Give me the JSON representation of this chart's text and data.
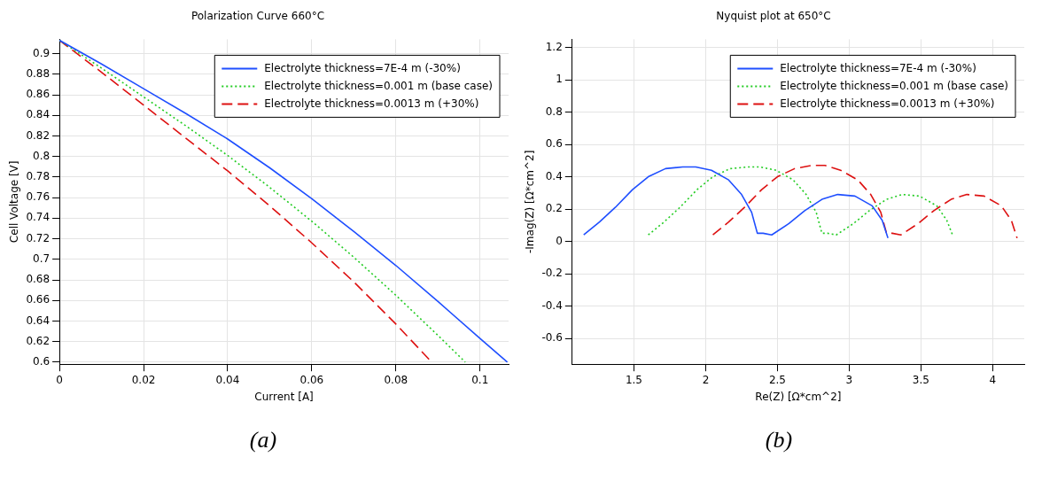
{
  "chart_data": [
    {
      "type": "line",
      "title": "Polarization Curve 660°C",
      "xlabel": "Current [A]",
      "ylabel": "Cell Voltage [V]",
      "xlim": [
        0,
        0.1068
      ],
      "ylim": [
        0.598,
        0.914
      ],
      "xticks": [
        0,
        0.02,
        0.04,
        0.06,
        0.08,
        0.1
      ],
      "yticks": [
        0.6,
        0.62,
        0.64,
        0.66,
        0.68,
        0.7,
        0.72,
        0.74,
        0.76,
        0.78,
        0.8,
        0.82,
        0.84,
        0.86,
        0.88,
        0.9
      ],
      "grid": true,
      "legend": "top right",
      "marker": "none",
      "annotations": [
        "(a)"
      ],
      "series": [
        {
          "name": "Electrolyte thickness=7E-4 m (-30%)",
          "color": "#1f4fff",
          "line_style": "solid",
          "x": [
            0,
            0.01,
            0.02,
            0.03,
            0.04,
            0.05,
            0.06,
            0.07,
            0.08,
            0.09,
            0.1,
            0.1065
          ],
          "values": [
            0.913,
            0.89,
            0.866,
            0.842,
            0.817,
            0.789,
            0.759,
            0.727,
            0.694,
            0.659,
            0.623,
            0.6
          ]
        },
        {
          "name": "Electrolyte thickness=0.001 m (base case)",
          "color": "#22cc22",
          "line_style": "dotted",
          "x": [
            0,
            0.01,
            0.02,
            0.03,
            0.04,
            0.05,
            0.06,
            0.07,
            0.08,
            0.09,
            0.0965
          ],
          "values": [
            0.913,
            0.886,
            0.858,
            0.83,
            0.801,
            0.77,
            0.737,
            0.702,
            0.665,
            0.626,
            0.6
          ]
        },
        {
          "name": "Electrolyte thickness=0.0013 m (+30%)",
          "color": "#dd1111",
          "line_style": "dashed",
          "x": [
            0,
            0.01,
            0.02,
            0.03,
            0.04,
            0.05,
            0.06,
            0.07,
            0.08,
            0.0885
          ],
          "values": [
            0.913,
            0.882,
            0.85,
            0.818,
            0.786,
            0.752,
            0.716,
            0.678,
            0.637,
            0.6
          ]
        }
      ]
    },
    {
      "type": "line",
      "title": "Nyquist plot at 650°C",
      "xlabel": "Re(Z) [Ω*cm^2]",
      "ylabel": "-Imag(Z) [Ω*cm^2]",
      "xlim": [
        1.07,
        4.22
      ],
      "ylim": [
        -0.76,
        1.25
      ],
      "xticks": [
        1.5,
        2,
        2.5,
        3,
        3.5,
        4
      ],
      "yticks": [
        -0.6,
        -0.4,
        -0.2,
        0,
        0.2,
        0.4,
        0.6,
        0.8,
        1,
        1.2
      ],
      "grid": true,
      "legend": "top right",
      "marker": "none",
      "annotations": [
        "(b)"
      ],
      "series": [
        {
          "name": "Electrolyte thickness=7E-4 m (-30%)",
          "color": "#1f4fff",
          "line_style": "solid",
          "x": [
            1.15,
            1.26,
            1.37,
            1.49,
            1.6,
            1.72,
            1.84,
            1.93,
            2.04,
            2.16,
            2.25,
            2.32,
            2.36,
            2.4,
            2.46,
            2.58,
            2.69,
            2.81,
            2.92,
            3.04,
            3.16,
            3.23,
            3.27
          ],
          "values": [
            0.04,
            0.12,
            0.21,
            0.32,
            0.4,
            0.45,
            0.46,
            0.46,
            0.44,
            0.38,
            0.29,
            0.18,
            0.05,
            0.05,
            0.04,
            0.11,
            0.19,
            0.26,
            0.29,
            0.28,
            0.22,
            0.13,
            0.02
          ]
        },
        {
          "name": "Electrolyte thickness=0.001 m (base case)",
          "color": "#22cc22",
          "line_style": "dotted",
          "x": [
            1.6,
            1.71,
            1.82,
            1.94,
            2.05,
            2.17,
            2.29,
            2.38,
            2.49,
            2.61,
            2.7,
            2.77,
            2.81,
            2.85,
            2.91,
            3.03,
            3.14,
            3.26,
            3.37,
            3.49,
            3.61,
            3.68,
            3.72
          ],
          "values": [
            0.04,
            0.12,
            0.21,
            0.32,
            0.4,
            0.45,
            0.46,
            0.46,
            0.44,
            0.38,
            0.29,
            0.18,
            0.05,
            0.05,
            0.04,
            0.11,
            0.19,
            0.26,
            0.29,
            0.28,
            0.22,
            0.13,
            0.04
          ]
        },
        {
          "name": "Electrolyte thickness=0.0013 m (+30%)",
          "color": "#dd1111",
          "line_style": "dashed",
          "x": [
            2.05,
            2.16,
            2.27,
            2.39,
            2.5,
            2.62,
            2.74,
            2.83,
            2.94,
            3.06,
            3.15,
            3.22,
            3.26,
            3.3,
            3.36,
            3.48,
            3.59,
            3.71,
            3.82,
            3.94,
            4.06,
            4.13,
            4.17
          ],
          "values": [
            0.04,
            0.12,
            0.21,
            0.32,
            0.4,
            0.45,
            0.47,
            0.47,
            0.44,
            0.38,
            0.29,
            0.18,
            0.05,
            0.05,
            0.04,
            0.11,
            0.19,
            0.26,
            0.29,
            0.28,
            0.22,
            0.13,
            0.02
          ]
        }
      ]
    }
  ]
}
